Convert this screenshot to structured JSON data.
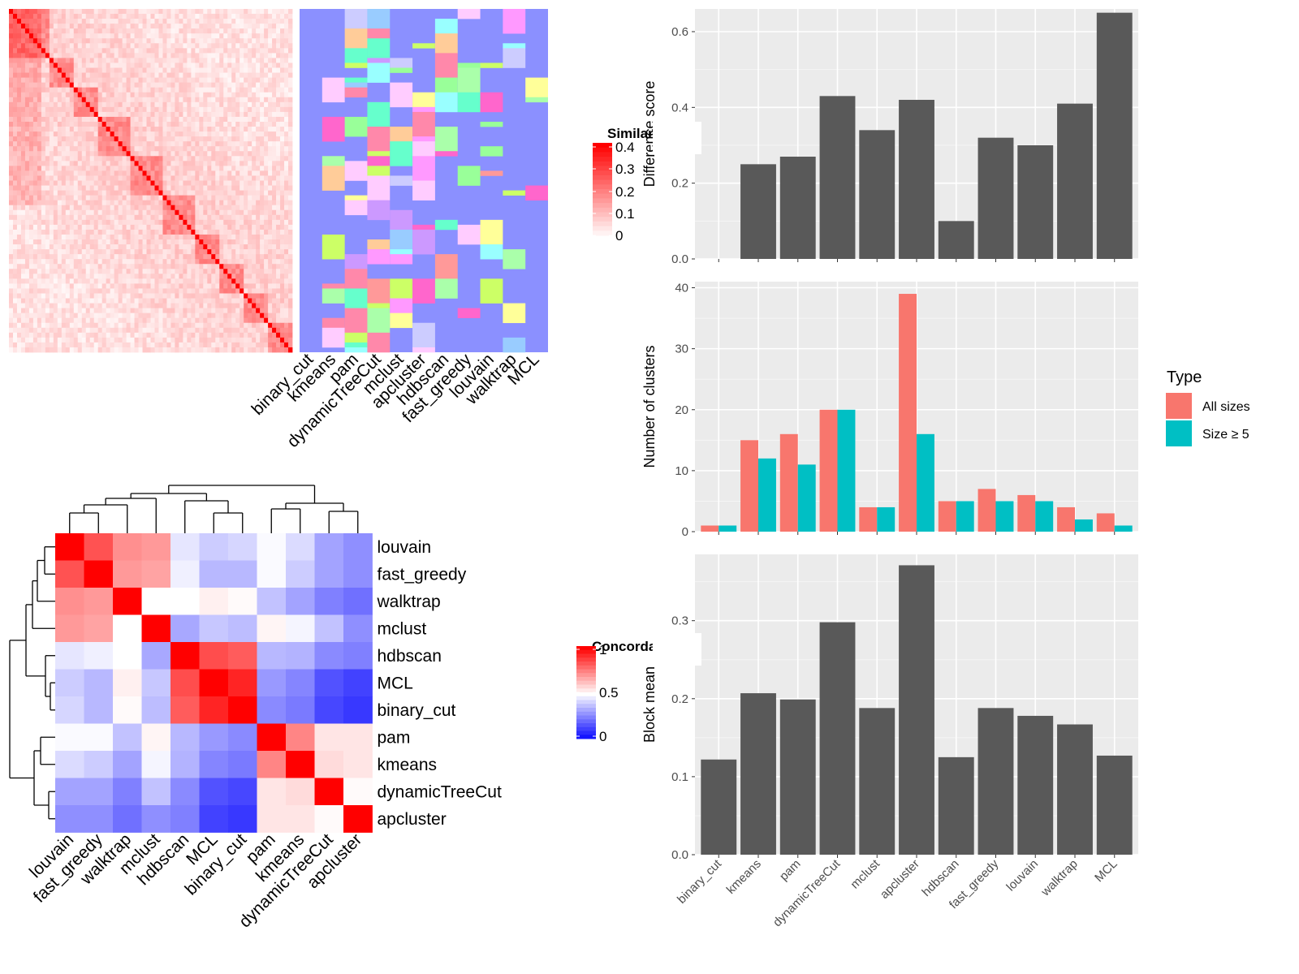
{
  "colors": {
    "panel_bg": "#ebebeb",
    "grid": "#ffffff",
    "bar_fill": "#595959",
    "all_sizes": "#f8766d",
    "size_ge5": "#00bfc4",
    "heat_high": "#ff0000",
    "heat_mid": "#ffffff",
    "heat_low": "#0000ff",
    "cluster_base": "#8b90ff"
  },
  "methods": [
    "binary_cut",
    "kmeans",
    "pam",
    "dynamicTreeCut",
    "mclust",
    "apcluster",
    "hdbscan",
    "fast_greedy",
    "louvain",
    "walktrap",
    "MCL"
  ],
  "similarity_heatmap": {
    "legend_title": "Similarity",
    "legend_ticks": [
      "0.4",
      "0.3",
      "0.2",
      "0.1",
      "0"
    ],
    "column_labels": [
      "binary_cut",
      "kmeans",
      "pam",
      "dynamicTreeCut",
      "mclust",
      "apcluster",
      "hdbscan",
      "fast_greedy",
      "louvain",
      "walktrap",
      "MCL"
    ]
  },
  "concordance_heatmap": {
    "legend_title": "Concordance",
    "legend_ticks": [
      "1",
      "0.5",
      "0"
    ],
    "order": [
      "louvain",
      "fast_greedy",
      "walktrap",
      "mclust",
      "hdbscan",
      "MCL",
      "binary_cut",
      "pam",
      "kmeans",
      "dynamicTreeCut",
      "apcluster"
    ],
    "matrix": [
      [
        1.0,
        0.84,
        0.72,
        0.7,
        0.45,
        0.4,
        0.42,
        0.49,
        0.43,
        0.32,
        0.28
      ],
      [
        0.84,
        1.0,
        0.7,
        0.68,
        0.47,
        0.36,
        0.36,
        0.49,
        0.4,
        0.32,
        0.28
      ],
      [
        0.72,
        0.7,
        1.0,
        0.5,
        0.5,
        0.53,
        0.51,
        0.38,
        0.32,
        0.25,
        0.22
      ],
      [
        0.7,
        0.68,
        0.5,
        1.0,
        0.33,
        0.39,
        0.37,
        0.52,
        0.48,
        0.38,
        0.28
      ],
      [
        0.45,
        0.47,
        0.5,
        0.33,
        1.0,
        0.85,
        0.82,
        0.36,
        0.35,
        0.27,
        0.25
      ],
      [
        0.4,
        0.36,
        0.53,
        0.39,
        0.85,
        1.0,
        0.93,
        0.3,
        0.26,
        0.16,
        0.13
      ],
      [
        0.42,
        0.36,
        0.51,
        0.37,
        0.82,
        0.93,
        1.0,
        0.27,
        0.24,
        0.14,
        0.11
      ],
      [
        0.49,
        0.49,
        0.38,
        0.52,
        0.36,
        0.3,
        0.27,
        1.0,
        0.74,
        0.55,
        0.55
      ],
      [
        0.43,
        0.4,
        0.32,
        0.48,
        0.35,
        0.26,
        0.24,
        0.74,
        1.0,
        0.57,
        0.55
      ],
      [
        0.32,
        0.32,
        0.25,
        0.38,
        0.27,
        0.16,
        0.14,
        0.55,
        0.57,
        1.0,
        0.51
      ],
      [
        0.28,
        0.28,
        0.22,
        0.28,
        0.25,
        0.13,
        0.11,
        0.55,
        0.55,
        0.51,
        1.0
      ]
    ]
  },
  "chart_data": [
    {
      "type": "bar",
      "ylabel": "Difference score",
      "categories": [
        "binary_cut",
        "kmeans",
        "pam",
        "dynamicTreeCut",
        "mclust",
        "apcluster",
        "hdbscan",
        "fast_greedy",
        "louvain",
        "walktrap",
        "MCL"
      ],
      "values": [
        0.0,
        0.25,
        0.27,
        0.43,
        0.34,
        0.42,
        0.1,
        0.32,
        0.3,
        0.41,
        0.65
      ],
      "ylim": [
        0,
        0.66
      ],
      "yticks": [
        0.0,
        0.2,
        0.4,
        0.6
      ],
      "ytick_labels": [
        "0.0",
        "0.2",
        "0.4",
        "0.6"
      ],
      "grid": true
    },
    {
      "type": "bar",
      "ylabel": "Number of clusters",
      "categories": [
        "binary_cut",
        "kmeans",
        "pam",
        "dynamicTreeCut",
        "mclust",
        "apcluster",
        "hdbscan",
        "fast_greedy",
        "louvain",
        "walktrap",
        "MCL"
      ],
      "legend_title": "Type",
      "legend_position": "right",
      "series": [
        {
          "name": "All sizes",
          "values": [
            1,
            15,
            16,
            20,
            4,
            39,
            5,
            7,
            6,
            4,
            3
          ]
        },
        {
          "name": "Size ≥ 5",
          "values": [
            1,
            12,
            11,
            20,
            4,
            16,
            5,
            5,
            5,
            2,
            1
          ]
        }
      ],
      "ylim": [
        0,
        41
      ],
      "yticks": [
        0,
        10,
        20,
        30,
        40
      ],
      "ytick_labels": [
        "0",
        "10",
        "20",
        "30",
        "40"
      ],
      "grid": true
    },
    {
      "type": "bar",
      "ylabel": "Block mean",
      "categories": [
        "binary_cut",
        "kmeans",
        "pam",
        "dynamicTreeCut",
        "mclust",
        "apcluster",
        "hdbscan",
        "fast_greedy",
        "louvain",
        "walktrap",
        "MCL"
      ],
      "values": [
        0.122,
        0.207,
        0.199,
        0.298,
        0.188,
        0.371,
        0.125,
        0.188,
        0.178,
        0.167,
        0.127
      ],
      "ylim": [
        0,
        0.385
      ],
      "yticks": [
        0.0,
        0.1,
        0.2,
        0.3
      ],
      "ytick_labels": [
        "0.0",
        "0.1",
        "0.2",
        "0.3"
      ],
      "grid": true
    }
  ]
}
